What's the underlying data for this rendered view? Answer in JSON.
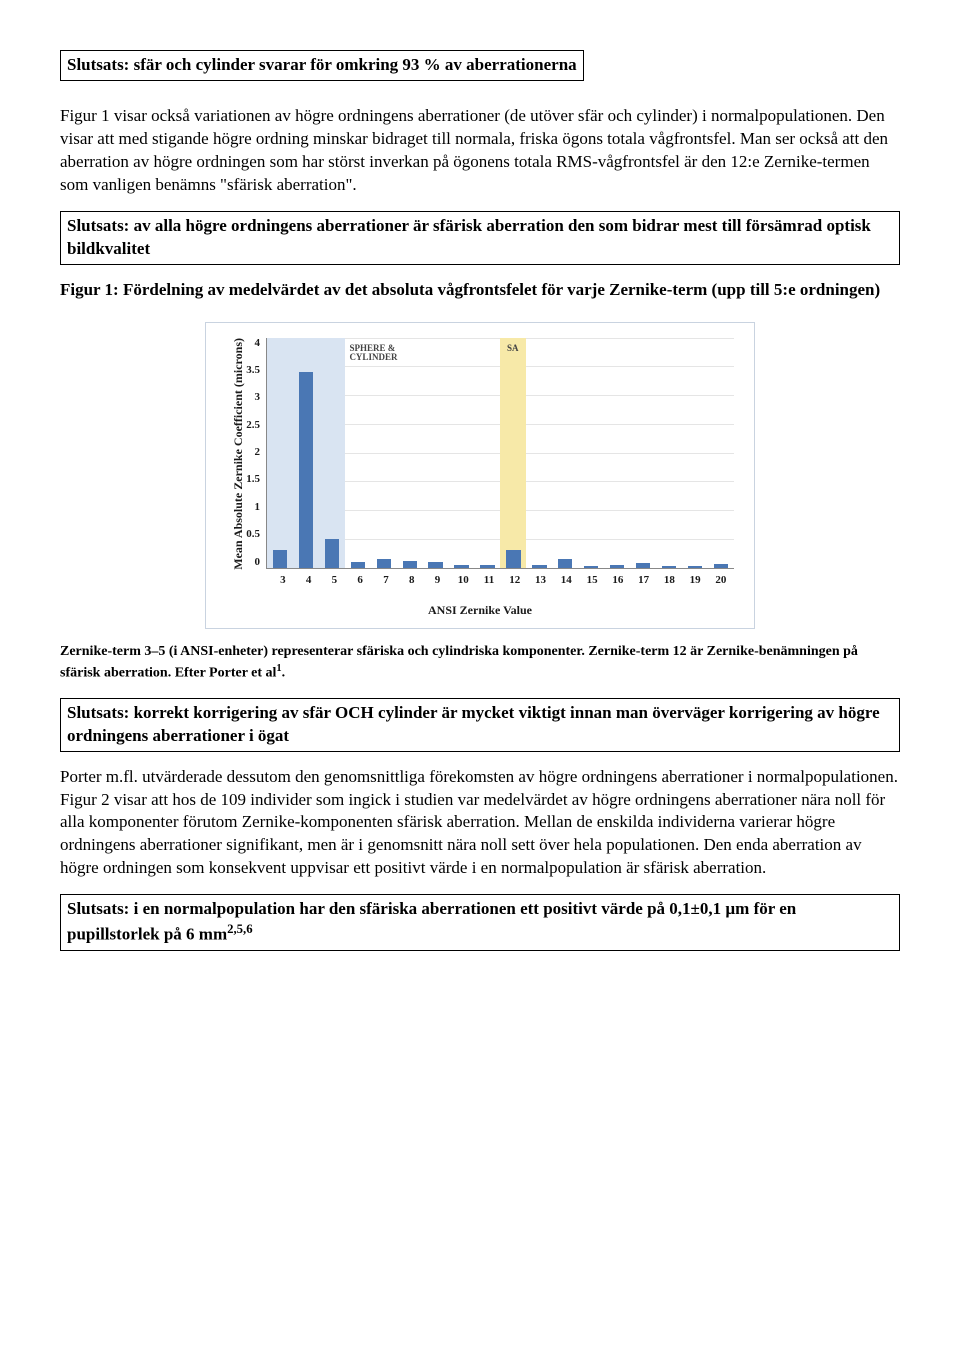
{
  "box1": "Slutsats: sfär och cylinder svarar för omkring 93 % av aberrationerna",
  "para1": "Figur 1 visar också variationen av högre ordningens aberrationer (de utöver sfär och cylinder) i normalpopulationen. Den visar att med stigande högre ordning minskar bidraget till normala, friska ögons totala vågfrontsfel. Man ser också att den aberration av högre ordningen som har störst inverkan på ögonens totala RMS-vågfrontsfel är den 12:e Zernike-termen som vanligen benämns \"sfärisk aberration\".",
  "box2": "Slutsats: av alla högre ordningens aberrationer är sfärisk aberration den som bidrar mest till försämrad optisk bildkvalitet",
  "fig_caption": "Figur 1: Fördelning av medelvärdet av det absoluta vågfrontsfelet för varje Zernike-term (upp till 5:e ordningen)",
  "chart": {
    "type": "bar",
    "ylabel": "Mean Absolute Zernike Coefficient (microns)",
    "xlabel": "ANSI Zernike Value",
    "categories": [
      "3",
      "4",
      "5",
      "6",
      "7",
      "8",
      "9",
      "10",
      "11",
      "12",
      "13",
      "14",
      "15",
      "16",
      "17",
      "18",
      "19",
      "20"
    ],
    "values": [
      0.3,
      3.4,
      0.5,
      0.1,
      0.15,
      0.12,
      0.1,
      0.05,
      0.05,
      0.3,
      0.05,
      0.15,
      0.03,
      0.04,
      0.08,
      0.03,
      0.03,
      0.06
    ],
    "bar_color": "#4a77b4",
    "ylim_max": 4.0,
    "yticks": [
      "4",
      "3.5",
      "3",
      "2.5",
      "2",
      "1.5",
      "1",
      "0.5",
      "0"
    ],
    "highlight_scy": {
      "x_start": 0,
      "x_count": 3,
      "color": "#d9e4f2",
      "label": "SPHERE &\nCYLINDER"
    },
    "highlight_sa": {
      "x_index": 9,
      "color": "#f7e9a8",
      "label": "SA"
    },
    "grid_color": "#e5e5e5",
    "background_color": "#ffffff",
    "bar_width_ratio": 0.55,
    "label_fontsize": 12,
    "tick_fontsize": 11
  },
  "caption_small_pre": "Zernike-term 3–5 (i ANSI-enheter) representerar sfäriska och cylindriska komponenter. Zernike-term 12 är Zernike-benämningen på sfärisk aberration. Efter Porter et al",
  "caption_small_sup": "1",
  "caption_small_post": ".",
  "box3": "Slutsats: korrekt korrigering av sfär OCH cylinder är mycket viktigt innan man överväger korrigering av högre ordningens aberrationer i ögat",
  "para2": "Porter m.fl. utvärderade dessutom den genomsnittliga förekomsten av högre ordningens aberrationer i normalpopulationen. Figur 2 visar att hos de 109 individer som ingick i studien var medelvärdet av högre ordningens aberrationer nära noll för alla komponenter förutom Zernike-komponenten sfärisk aberration. Mellan de enskilda individerna varierar högre ordningens aberrationer signifikant, men är i genomsnitt nära noll sett över hela populationen. Den enda aberration av högre ordningen som konsekvent uppvisar ett positivt värde i en normalpopulation är sfärisk aberration.",
  "box4_pre": "Slutsats: i en normalpopulation har den sfäriska aberrationen ett positivt värde på 0,1±0,1 µm för en pupillstorlek på 6 mm",
  "box4_sup": "2,5,6"
}
